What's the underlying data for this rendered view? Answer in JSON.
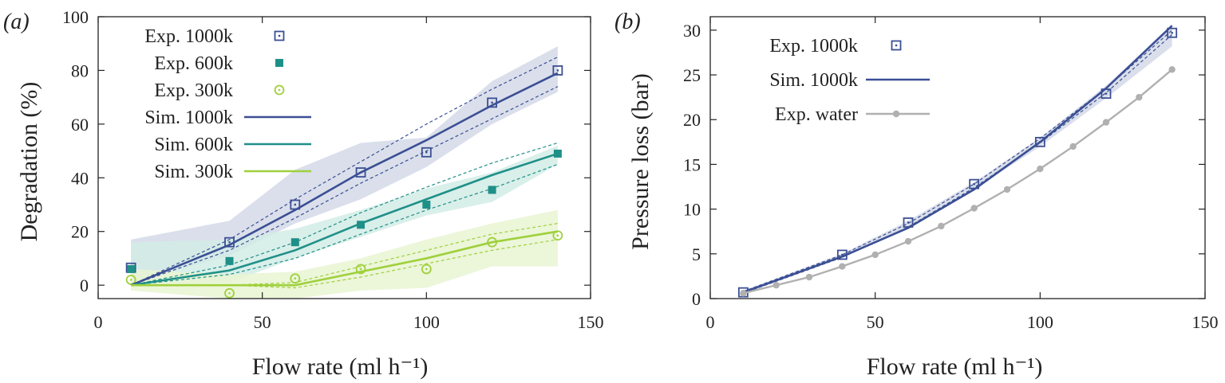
{
  "colors": {
    "c1000": "#3b4f94",
    "c600": "#1f9088",
    "c300": "#9fd03c",
    "water": "#b0b0b0",
    "band1000": "#d4d9e8",
    "band600": "#d2ece6",
    "band300": "#e9f4d2"
  },
  "chart_data": [
    {
      "type": "line",
      "panel_label": "(a)",
      "xlabel": "Flow rate (ml h⁻¹)",
      "ylabel": "Degradation (%)",
      "xlim": [
        0,
        150
      ],
      "ylim": [
        -5,
        100
      ],
      "xticks": [
        0,
        50,
        100,
        150
      ],
      "yticks": [
        0,
        20,
        40,
        60,
        80,
        100
      ],
      "xtick_labels": [
        "0",
        "50",
        "100",
        "150"
      ],
      "ytick_labels": [
        "0",
        "20",
        "40",
        "60",
        "80",
        "100"
      ],
      "legend_position": "top-left",
      "series": [
        {
          "name": "Exp. 1000k",
          "kind": "scatter",
          "marker": "open-square",
          "color_key": "c1000",
          "x": [
            10,
            40,
            60,
            80,
            100,
            120,
            140
          ],
          "y": [
            6.5,
            16,
            30,
            42,
            49.5,
            68,
            80
          ]
        },
        {
          "name": "Exp. 600k",
          "kind": "scatter",
          "marker": "filled-square",
          "color_key": "c600",
          "x": [
            10,
            40,
            60,
            80,
            100,
            120,
            140
          ],
          "y": [
            6,
            9,
            16,
            22.5,
            30,
            35.5,
            49
          ]
        },
        {
          "name": "Exp. 300k",
          "kind": "scatter",
          "marker": "open-circle",
          "color_key": "c300",
          "x": [
            10,
            40,
            60,
            80,
            100,
            120,
            140
          ],
          "y": [
            2,
            -3,
            2.5,
            6,
            6,
            16,
            18.5
          ]
        },
        {
          "name": "Sim. 1000k",
          "kind": "line",
          "color_key": "c1000",
          "x": [
            10,
            40,
            60,
            80,
            100,
            120,
            140
          ],
          "y": [
            0,
            15,
            28,
            42,
            54,
            67,
            79
          ],
          "upper": [
            0,
            17,
            32,
            46,
            60,
            73,
            85
          ],
          "lower": [
            0,
            13,
            25,
            38,
            50,
            62,
            74
          ],
          "band_color_key": "band1000",
          "band_upper": [
            17,
            24,
            43,
            53,
            55,
            76,
            89
          ],
          "band_lower": [
            1,
            11,
            23,
            32,
            44,
            60,
            72
          ]
        },
        {
          "name": "Sim. 600k",
          "kind": "line",
          "color_key": "c600",
          "x": [
            10,
            40,
            60,
            80,
            100,
            120,
            140
          ],
          "y": [
            0,
            5.5,
            13,
            23,
            32,
            41,
            49
          ],
          "upper": [
            0,
            7.5,
            16,
            27,
            36.5,
            45.5,
            53
          ],
          "lower": [
            0,
            4,
            10,
            19,
            28,
            36,
            45
          ],
          "band_color_key": "band600",
          "band_upper": [
            16,
            17,
            21,
            28,
            36,
            42,
            52
          ],
          "band_lower": [
            0,
            1,
            10,
            18,
            26,
            31,
            45
          ]
        },
        {
          "name": "Sim. 300k",
          "kind": "line",
          "color_key": "c300",
          "x": [
            10,
            40,
            60,
            80,
            100,
            120,
            140
          ],
          "y": [
            0,
            0,
            0,
            5,
            10,
            16,
            20
          ],
          "upper": [
            0,
            0,
            1,
            7,
            13,
            19,
            23
          ],
          "lower": [
            0,
            0,
            -1,
            3,
            8,
            13,
            17
          ],
          "band_color_key": "band300",
          "band_upper": [
            6,
            4,
            5,
            10,
            17,
            23,
            28
          ],
          "band_lower": [
            -2,
            -5,
            -5,
            -2,
            -1,
            7,
            7
          ]
        }
      ]
    },
    {
      "type": "line",
      "panel_label": "(b)",
      "xlabel": "Flow rate (ml h⁻¹)",
      "ylabel": "Pressure loss (bar)",
      "xlim": [
        0,
        150
      ],
      "ylim": [
        0,
        31.5
      ],
      "xticks": [
        0,
        50,
        100,
        150
      ],
      "yticks": [
        0,
        5,
        10,
        15,
        20,
        25,
        30
      ],
      "xtick_labels": [
        "0",
        "50",
        "100",
        "150"
      ],
      "ytick_labels": [
        "0",
        "5",
        "10",
        "15",
        "20",
        "25",
        "30"
      ],
      "legend_position": "top-left",
      "series": [
        {
          "name": "Exp. 1000k",
          "kind": "scatter",
          "marker": "open-square",
          "color_key": "c1000",
          "x": [
            10,
            40,
            60,
            80,
            100,
            120,
            140
          ],
          "y": [
            0.7,
            4.9,
            8.5,
            12.8,
            17.5,
            22.9,
            29.7
          ]
        },
        {
          "name": "Sim. 1000k",
          "kind": "line",
          "color_key": "c1000",
          "x": [
            10,
            40,
            60,
            80,
            100,
            120,
            140
          ],
          "y": [
            0.7,
            4.7,
            7.9,
            12.2,
            17.5,
            23.5,
            30.5
          ],
          "upper": [
            0.8,
            4.9,
            8.4,
            12.8,
            17.9,
            23.5,
            30.0
          ],
          "lower": [
            0.6,
            4.6,
            8.0,
            12.4,
            17.4,
            23.0,
            29.5
          ],
          "band_color_key": "band1000",
          "band_upper": [
            0.9,
            5.0,
            8.7,
            13.0,
            18.0,
            23.8,
            30.3
          ],
          "band_lower": [
            0.6,
            4.6,
            8.0,
            12.2,
            17.0,
            22.4,
            28.2
          ]
        },
        {
          "name": "Exp. water",
          "kind": "line-marker",
          "marker": "filled-circle",
          "color_key": "water",
          "x": [
            10,
            20,
            30,
            40,
            50,
            60,
            70,
            80,
            90,
            100,
            110,
            120,
            130,
            140
          ],
          "y": [
            0.6,
            1.5,
            2.4,
            3.6,
            4.9,
            6.4,
            8.1,
            10.1,
            12.2,
            14.5,
            17.0,
            19.7,
            22.5,
            25.6
          ]
        }
      ]
    }
  ]
}
